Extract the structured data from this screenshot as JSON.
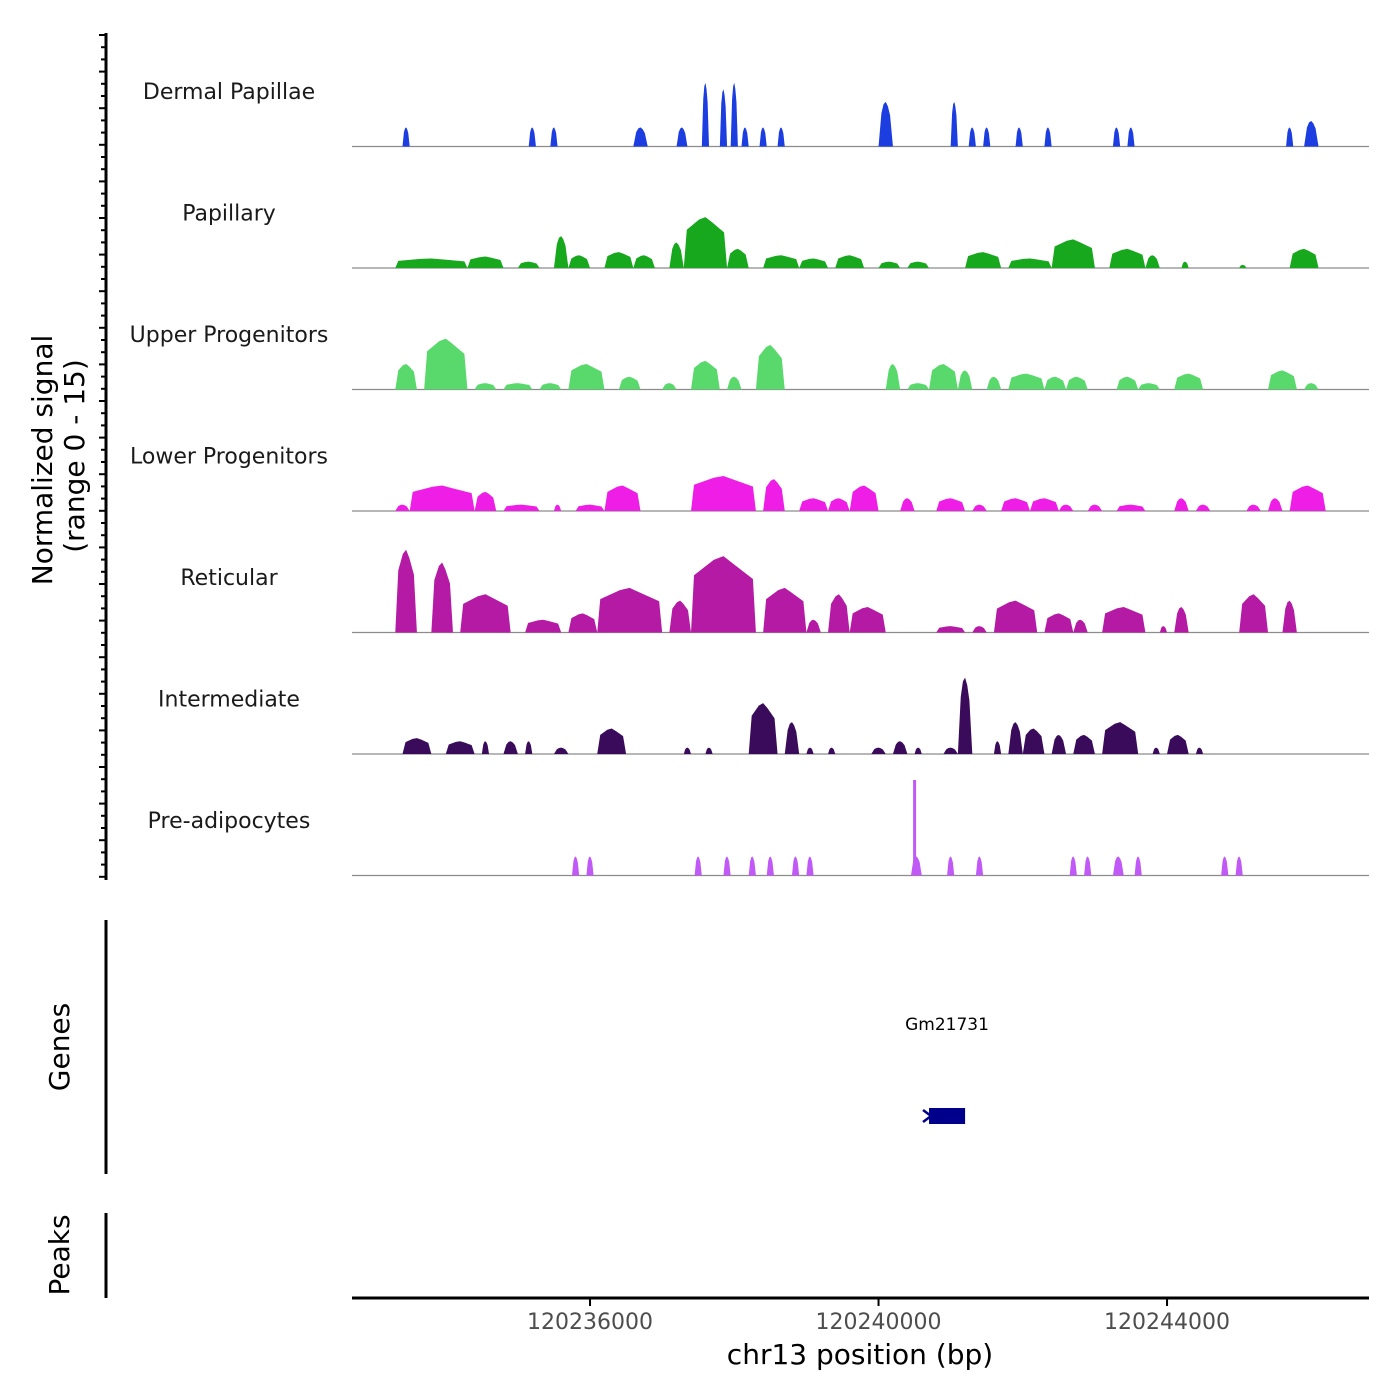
{
  "chart_data": {
    "type": "area",
    "title": "",
    "xlabel": "chr13 position (bp)",
    "ylabel": "Normalized signal",
    "ylabel_range": "(range 0 - 15)",
    "xlim": [
      120232700,
      120246800
    ],
    "ylim": [
      0,
      15
    ],
    "x_ticks": [
      120236000,
      120240000,
      120244000
    ],
    "x_tick_labels": [
      "120236000",
      "120240000",
      "120244000"
    ],
    "genes_label": "Genes",
    "peaks_label": "Peaks",
    "genes": [
      {
        "name": "Gm21731",
        "start": 120240700,
        "end": 120241200,
        "strand": "-"
      }
    ],
    "series": [
      {
        "name": "Dermal Papillae",
        "color": "#1c3de0",
        "peaks": [
          [
            120233400,
            120233500,
            3
          ],
          [
            120235150,
            120235250,
            3
          ],
          [
            120235450,
            120235550,
            3
          ],
          [
            120236600,
            120236800,
            3
          ],
          [
            120237200,
            120237350,
            3
          ],
          [
            120237550,
            120237650,
            10
          ],
          [
            120237800,
            120237900,
            9
          ],
          [
            120237950,
            120238050,
            10
          ],
          [
            120238100,
            120238200,
            3
          ],
          [
            120238350,
            120238450,
            3
          ],
          [
            120238600,
            120238700,
            3
          ],
          [
            120240000,
            120240200,
            7
          ],
          [
            120241000,
            120241100,
            7
          ],
          [
            120241250,
            120241350,
            3
          ],
          [
            120241450,
            120241550,
            3
          ],
          [
            120241900,
            120242000,
            3
          ],
          [
            120242300,
            120242400,
            3
          ],
          [
            120243250,
            120243350,
            3
          ],
          [
            120243450,
            120243550,
            3
          ],
          [
            120245650,
            120245750,
            3
          ],
          [
            120245900,
            120246100,
            4
          ]
        ]
      },
      {
        "name": "Papillary",
        "color": "#17a81d",
        "peaks": [
          [
            120233300,
            120234300,
            1.5
          ],
          [
            120234300,
            120234800,
            1.8
          ],
          [
            120235000,
            120235300,
            1
          ],
          [
            120235500,
            120235700,
            5
          ],
          [
            120235700,
            120236000,
            2
          ],
          [
            120236200,
            120236600,
            2.5
          ],
          [
            120236600,
            120236900,
            2
          ],
          [
            120237100,
            120237300,
            4
          ],
          [
            120237300,
            120237900,
            8
          ],
          [
            120237900,
            120238200,
            3
          ],
          [
            120238400,
            120238900,
            2
          ],
          [
            120238900,
            120239300,
            1.5
          ],
          [
            120239400,
            120239800,
            2
          ],
          [
            120240000,
            120240300,
            1
          ],
          [
            120240400,
            120240700,
            1
          ],
          [
            120241200,
            120241700,
            2.5
          ],
          [
            120241800,
            120242400,
            1.5
          ],
          [
            120242400,
            120243000,
            4.5
          ],
          [
            120243200,
            120243700,
            3
          ],
          [
            120243700,
            120243900,
            2
          ],
          [
            120244200,
            120244300,
            1
          ],
          [
            120245000,
            120245100,
            0.5
          ],
          [
            120245700,
            120246100,
            3
          ]
        ]
      },
      {
        "name": "Upper Progenitors",
        "color": "#59d96b",
        "peaks": [
          [
            120233300,
            120233600,
            4
          ],
          [
            120233700,
            120234300,
            8
          ],
          [
            120234400,
            120234700,
            1
          ],
          [
            120234800,
            120235200,
            1
          ],
          [
            120235300,
            120235600,
            1
          ],
          [
            120235700,
            120236200,
            4
          ],
          [
            120236400,
            120236700,
            2
          ],
          [
            120237000,
            120237200,
            1
          ],
          [
            120237400,
            120237800,
            4.5
          ],
          [
            120237900,
            120238100,
            2
          ],
          [
            120238300,
            120238700,
            7
          ],
          [
            120240100,
            120240300,
            4
          ],
          [
            120240400,
            120240700,
            1
          ],
          [
            120240700,
            120241100,
            4
          ],
          [
            120241100,
            120241300,
            3
          ],
          [
            120241500,
            120241700,
            2
          ],
          [
            120241800,
            120242300,
            2.5
          ],
          [
            120242300,
            120242600,
            2
          ],
          [
            120242600,
            120242900,
            2
          ],
          [
            120243300,
            120243600,
            2
          ],
          [
            120243600,
            120243900,
            1
          ],
          [
            120244100,
            120244500,
            2.5
          ],
          [
            120245400,
            120245800,
            3
          ],
          [
            120245900,
            120246100,
            1
          ]
        ]
      },
      {
        "name": "Lower Progenitors",
        "color": "#ee1ee6",
        "peaks": [
          [
            120233300,
            120233500,
            1
          ],
          [
            120233500,
            120234400,
            4
          ],
          [
            120234400,
            120234700,
            3
          ],
          [
            120234800,
            120235300,
            1
          ],
          [
            120235500,
            120235600,
            1
          ],
          [
            120235800,
            120236200,
            1
          ],
          [
            120236200,
            120236700,
            4
          ],
          [
            120237400,
            120238300,
            5.5
          ],
          [
            120238400,
            120238700,
            5
          ],
          [
            120238900,
            120239300,
            2
          ],
          [
            120239300,
            120239600,
            2
          ],
          [
            120239600,
            120240000,
            4
          ],
          [
            120240300,
            120240500,
            2
          ],
          [
            120240800,
            120241200,
            2
          ],
          [
            120241300,
            120241500,
            1
          ],
          [
            120241700,
            120242100,
            2
          ],
          [
            120242100,
            120242500,
            2
          ],
          [
            120242500,
            120242700,
            1
          ],
          [
            120242900,
            120243100,
            1
          ],
          [
            120243300,
            120243700,
            1
          ],
          [
            120244100,
            120244300,
            2
          ],
          [
            120244400,
            120244600,
            1
          ],
          [
            120245100,
            120245300,
            1
          ],
          [
            120245400,
            120245600,
            2
          ],
          [
            120245700,
            120246200,
            4
          ]
        ]
      },
      {
        "name": "Reticular",
        "color": "#b51aa5",
        "peaks": [
          [
            120233300,
            120233600,
            13
          ],
          [
            120233800,
            120234100,
            11
          ],
          [
            120234200,
            120234900,
            6
          ],
          [
            120235100,
            120235600,
            2
          ],
          [
            120235700,
            120236100,
            3
          ],
          [
            120236100,
            120237000,
            7
          ],
          [
            120237100,
            120237400,
            5
          ],
          [
            120237400,
            120238300,
            12
          ],
          [
            120238400,
            120239000,
            7
          ],
          [
            120239000,
            120239200,
            2
          ],
          [
            120239300,
            120239600,
            6
          ],
          [
            120239600,
            120240100,
            4
          ],
          [
            120240800,
            120241200,
            1
          ],
          [
            120241300,
            120241500,
            1
          ],
          [
            120241600,
            120242200,
            5
          ],
          [
            120242300,
            120242700,
            3
          ],
          [
            120242700,
            120242900,
            2
          ],
          [
            120243100,
            120243700,
            4
          ],
          [
            120243900,
            120244000,
            1
          ],
          [
            120244100,
            120244300,
            4
          ],
          [
            120245000,
            120245400,
            6
          ],
          [
            120245600,
            120245800,
            5
          ]
        ]
      },
      {
        "name": "Intermediate",
        "color": "#3a0b5a",
        "peaks": [
          [
            120233400,
            120233800,
            2.5
          ],
          [
            120234000,
            120234400,
            2
          ],
          [
            120234500,
            120234600,
            2
          ],
          [
            120234800,
            120235000,
            2
          ],
          [
            120235100,
            120235200,
            2
          ],
          [
            120235500,
            120235700,
            1
          ],
          [
            120236100,
            120236500,
            4
          ],
          [
            120237300,
            120237400,
            1
          ],
          [
            120237600,
            120237700,
            1
          ],
          [
            120238200,
            120238600,
            8
          ],
          [
            120238700,
            120238900,
            5
          ],
          [
            120239000,
            120239100,
            1
          ],
          [
            120239300,
            120239400,
            1
          ],
          [
            120239900,
            120240100,
            1
          ],
          [
            120240200,
            120240400,
            2
          ],
          [
            120240500,
            120240600,
            1
          ],
          [
            120240900,
            120241100,
            1
          ],
          [
            120241100,
            120241300,
            12
          ],
          [
            120241600,
            120241700,
            2
          ],
          [
            120241800,
            120242000,
            5
          ],
          [
            120242000,
            120242300,
            4
          ],
          [
            120242400,
            120242600,
            3
          ],
          [
            120242700,
            120243000,
            3
          ],
          [
            120243100,
            120243600,
            5
          ],
          [
            120243800,
            120243900,
            1
          ],
          [
            120244000,
            120244300,
            3
          ],
          [
            120244400,
            120244500,
            1
          ]
        ]
      },
      {
        "name": "Pre-adipocytes",
        "color": "#c059f5",
        "peaks": [
          [
            120235750,
            120235850,
            3
          ],
          [
            120235950,
            120236050,
            3
          ],
          [
            120237450,
            120237550,
            3
          ],
          [
            120237850,
            120237950,
            3
          ],
          [
            120238200,
            120238300,
            3
          ],
          [
            120238450,
            120238550,
            3
          ],
          [
            120238800,
            120238900,
            3
          ],
          [
            120239000,
            120239100,
            3
          ],
          [
            120240450,
            120240600,
            3
          ],
          [
            120240950,
            120241050,
            3
          ],
          [
            120241350,
            120241450,
            3
          ],
          [
            120242650,
            120242750,
            3
          ],
          [
            120242850,
            120242950,
            3
          ],
          [
            120243250,
            120243400,
            3
          ],
          [
            120243550,
            120243650,
            3
          ],
          [
            120244750,
            120244850,
            3
          ],
          [
            120244950,
            120245050,
            3
          ]
        ],
        "spikes": [
          [
            120240500,
            15
          ]
        ]
      }
    ]
  }
}
